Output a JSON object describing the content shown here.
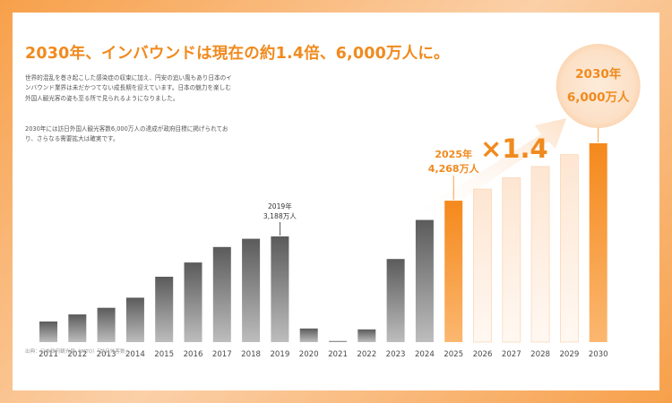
{
  "headline": "2030年、インバウンドは現在の約1.4倍、6,000万人に。",
  "paragraph1": "世界的混乱を巻き起こした感染症の収束に加え、円安の追い風もあり日本のインバウンド業界は未だかつてない成長期を迎えています。日本の魅力を楽しむ外国人観光客の姿も至る所で見られるようになりました。",
  "paragraph2": "2030年には訪日外国人観光客数6,000万人の達成が政府目標に掲げられており、さらなる需要拡大は確実です。",
  "source": "出典：日本政府観光局（JNTO）「訪日外客数」",
  "multiplier": "×1.4",
  "colors": {
    "accent": "#f08a1e",
    "bar_dark": "#5f5f5f",
    "bar_light": "#bdbdbd",
    "projection": "#fde3cf",
    "circle": "#fde8d2"
  },
  "chart_data": {
    "type": "bar",
    "categories": [
      "2011",
      "2012",
      "2013",
      "2014",
      "2015",
      "2016",
      "2017",
      "2018",
      "2019",
      "2020",
      "2021",
      "2022",
      "2023",
      "2024",
      "2025",
      "2026",
      "2027",
      "2028",
      "2029",
      "2030"
    ],
    "values": [
      622,
      836,
      1036,
      1341,
      1974,
      2404,
      2869,
      3119,
      3188,
      412,
      25,
      383,
      2507,
      3687,
      4268,
      4620,
      4960,
      5300,
      5660,
      6000
    ],
    "kinds": [
      "actual",
      "actual",
      "actual",
      "actual",
      "actual",
      "actual",
      "actual",
      "actual",
      "actual",
      "actual",
      "actual",
      "actual",
      "actual",
      "actual",
      "highlight",
      "projection",
      "projection",
      "projection",
      "projection",
      "target"
    ],
    "unit": "万人",
    "ylim": [
      0,
      6000
    ],
    "annotations": [
      {
        "category": "2019",
        "lines": [
          "2019年",
          "3,188万人"
        ]
      },
      {
        "category": "2025",
        "lines": [
          "2025年",
          "4,268万人"
        ]
      },
      {
        "category": "2030",
        "lines": [
          "2030年",
          "6,000万人"
        ]
      }
    ]
  }
}
